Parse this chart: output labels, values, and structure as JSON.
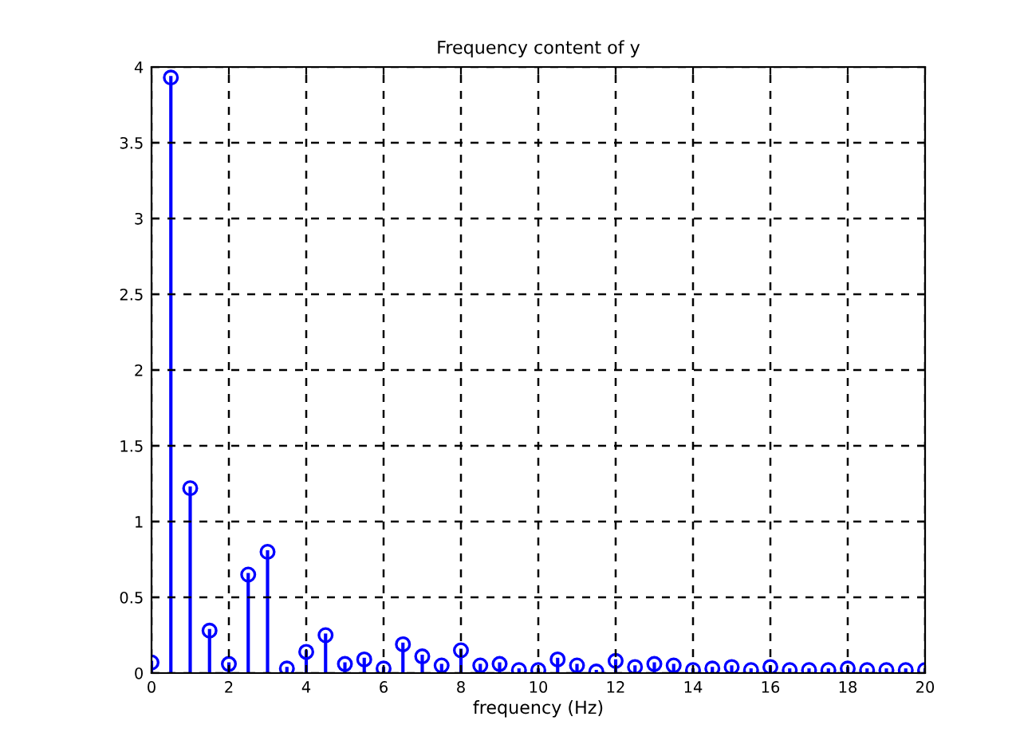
{
  "chart_data": {
    "type": "lollipop",
    "title": "Frequency content of y",
    "xlabel": "frequency (Hz)",
    "x": [
      0,
      0.5,
      1,
      1.5,
      2,
      2.5,
      3,
      3.5,
      4,
      4.5,
      5,
      5.5,
      6,
      6.5,
      7,
      7.5,
      8,
      8.5,
      9,
      9.5,
      10,
      10.5,
      11,
      11.5,
      12,
      12.5,
      13,
      13.5,
      14,
      14.5,
      15,
      15.5,
      16,
      16.5,
      17,
      17.5,
      18,
      18.5,
      19,
      19.5,
      20
    ],
    "series": [
      {
        "color": "#0000ff",
        "values": [
          0.07,
          3.93,
          1.22,
          0.28,
          0.06,
          0.65,
          0.8,
          0.03,
          0.14,
          0.25,
          0.06,
          0.09,
          0.03,
          0.19,
          0.11,
          0.05,
          0.15,
          0.05,
          0.06,
          0.02,
          0.02,
          0.09,
          0.05,
          0.01,
          0.08,
          0.04,
          0.06,
          0.05,
          0.02,
          0.03,
          0.04,
          0.02,
          0.04,
          0.02,
          0.02,
          0.02,
          0.03,
          0.02,
          0.02,
          0.02,
          0.02
        ]
      }
    ],
    "xlim": [
      0,
      20
    ],
    "xticks": [
      0,
      2,
      4,
      6,
      8,
      10,
      12,
      14,
      16,
      18,
      20
    ],
    "ylim": [
      0,
      4
    ],
    "yticks": [
      0,
      0.5,
      1,
      1.5,
      2,
      2.5,
      3,
      3.5,
      4
    ],
    "grid": true,
    "marker": "circle",
    "line_style": "solid"
  }
}
